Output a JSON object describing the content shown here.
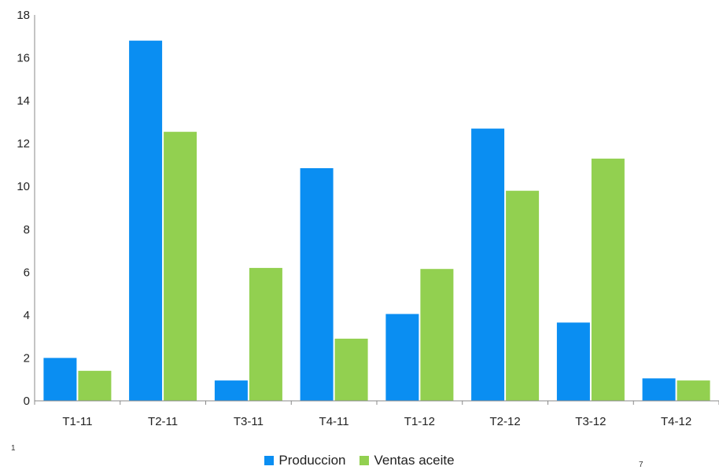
{
  "chart_data": {
    "type": "bar",
    "categories": [
      "T1-11",
      "T2-11",
      "T3-11",
      "T4-11",
      "T1-12",
      "T2-12",
      "T3-12",
      "T4-12"
    ],
    "series": [
      {
        "name": "Produccion",
        "color": "#0A8EF2",
        "values": [
          2.0,
          16.8,
          0.95,
          10.85,
          4.05,
          12.7,
          3.65,
          1.05
        ]
      },
      {
        "name": "Ventas aceite",
        "color": "#92D050",
        "values": [
          1.4,
          12.55,
          6.2,
          2.9,
          6.15,
          9.8,
          11.3,
          0.95
        ]
      }
    ],
    "title": "",
    "xlabel": "",
    "ylabel": "",
    "ylim": [
      0,
      18
    ],
    "yticks": [
      "0",
      "2",
      "4",
      "6",
      "8",
      "10",
      "12",
      "14",
      "16",
      "18"
    ],
    "grid": false,
    "legend_position": "bottom-center"
  },
  "footnote_marks": {
    "left": "1",
    "right": "7"
  }
}
